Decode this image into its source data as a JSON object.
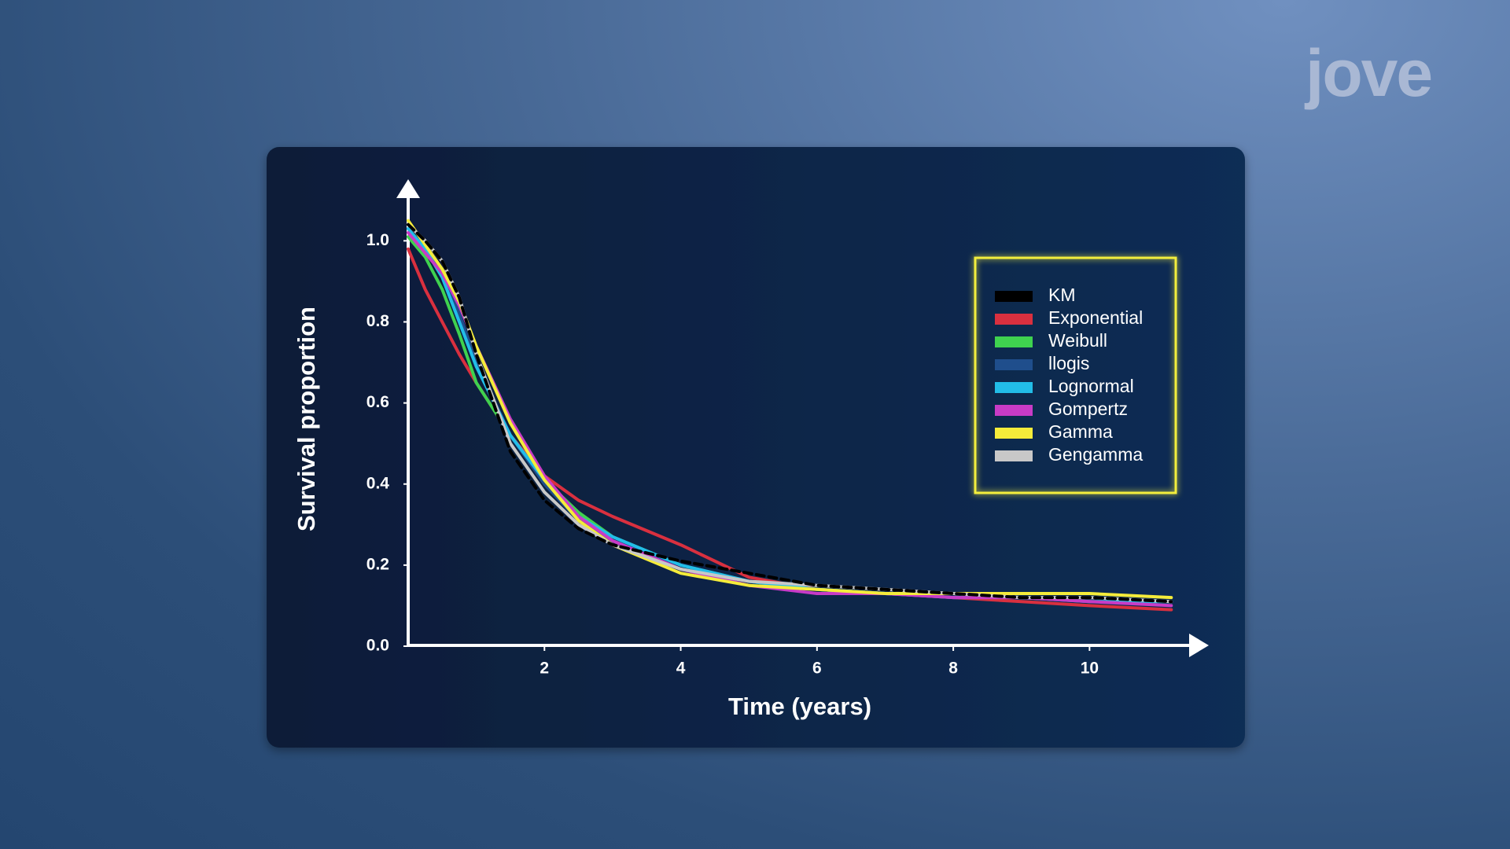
{
  "logo": "jove",
  "chart_data": {
    "type": "line",
    "y_label": "Survival proportion",
    "x_label": "Time (years)",
    "xlim": [
      0,
      11.6
    ],
    "ylim": [
      0,
      1.15
    ],
    "xticks": [
      2,
      4,
      6,
      8,
      10
    ],
    "yticks": [
      {
        "value": 0,
        "label": "0.0"
      },
      0.2,
      0.4,
      0.6,
      0.8,
      {
        "value": 1,
        "label": "1.0"
      }
    ],
    "legend": "upper right",
    "x": [
      0,
      0.25,
      0.5,
      0.75,
      1,
      1.5,
      2,
      2.5,
      3,
      4,
      5,
      6,
      7,
      8,
      9,
      10,
      11.2
    ],
    "series": [
      {
        "name": "KM",
        "color": "#000000",
        "style": "dashed",
        "values": [
          1.04,
          1.0,
          0.95,
          0.86,
          0.72,
          0.48,
          0.36,
          0.29,
          0.25,
          0.21,
          0.18,
          0.15,
          0.14,
          0.13,
          0.12,
          0.12,
          0.11
        ]
      },
      {
        "name": "Exponential",
        "color": "#d9303f",
        "values": [
          0.98,
          0.88,
          0.8,
          0.72,
          0.65,
          0.52,
          0.42,
          0.36,
          0.32,
          0.25,
          0.17,
          0.14,
          0.13,
          0.12,
          0.11,
          0.1,
          0.09
        ]
      },
      {
        "name": "Weibull",
        "color": "#3fd24f",
        "values": [
          1.01,
          0.96,
          0.88,
          0.77,
          0.65,
          0.52,
          0.41,
          0.33,
          0.27,
          0.2,
          0.16,
          0.14,
          0.13,
          0.13,
          0.12,
          0.12,
          0.11
        ]
      },
      {
        "name": "llogis",
        "color": "#1f4e8c",
        "values": [
          1.03,
          0.98,
          0.92,
          0.82,
          0.7,
          0.52,
          0.4,
          0.31,
          0.26,
          0.2,
          0.16,
          0.14,
          0.13,
          0.13,
          0.12,
          0.12,
          0.11
        ]
      },
      {
        "name": "Lognormal",
        "color": "#22bde8",
        "values": [
          1.03,
          0.98,
          0.91,
          0.8,
          0.69,
          0.52,
          0.41,
          0.32,
          0.27,
          0.2,
          0.16,
          0.14,
          0.13,
          0.12,
          0.12,
          0.11,
          0.11
        ]
      },
      {
        "name": "Gompertz",
        "color": "#c83bc6",
        "values": [
          1.02,
          0.97,
          0.92,
          0.84,
          0.74,
          0.56,
          0.42,
          0.32,
          0.26,
          0.19,
          0.15,
          0.13,
          0.13,
          0.12,
          0.12,
          0.11,
          0.1
        ]
      },
      {
        "name": "Gamma",
        "color": "#f5ec3a",
        "values": [
          1.05,
          0.99,
          0.93,
          0.85,
          0.74,
          0.55,
          0.41,
          0.31,
          0.25,
          0.18,
          0.15,
          0.14,
          0.13,
          0.13,
          0.13,
          0.13,
          0.12
        ]
      },
      {
        "name": "Gengamma",
        "color": "#c8c8c8",
        "values": [
          1.04,
          1.0,
          0.95,
          0.86,
          0.72,
          0.5,
          0.38,
          0.3,
          0.25,
          0.19,
          0.16,
          0.15,
          0.14,
          0.13,
          0.12,
          0.12,
          0.11
        ]
      }
    ]
  }
}
